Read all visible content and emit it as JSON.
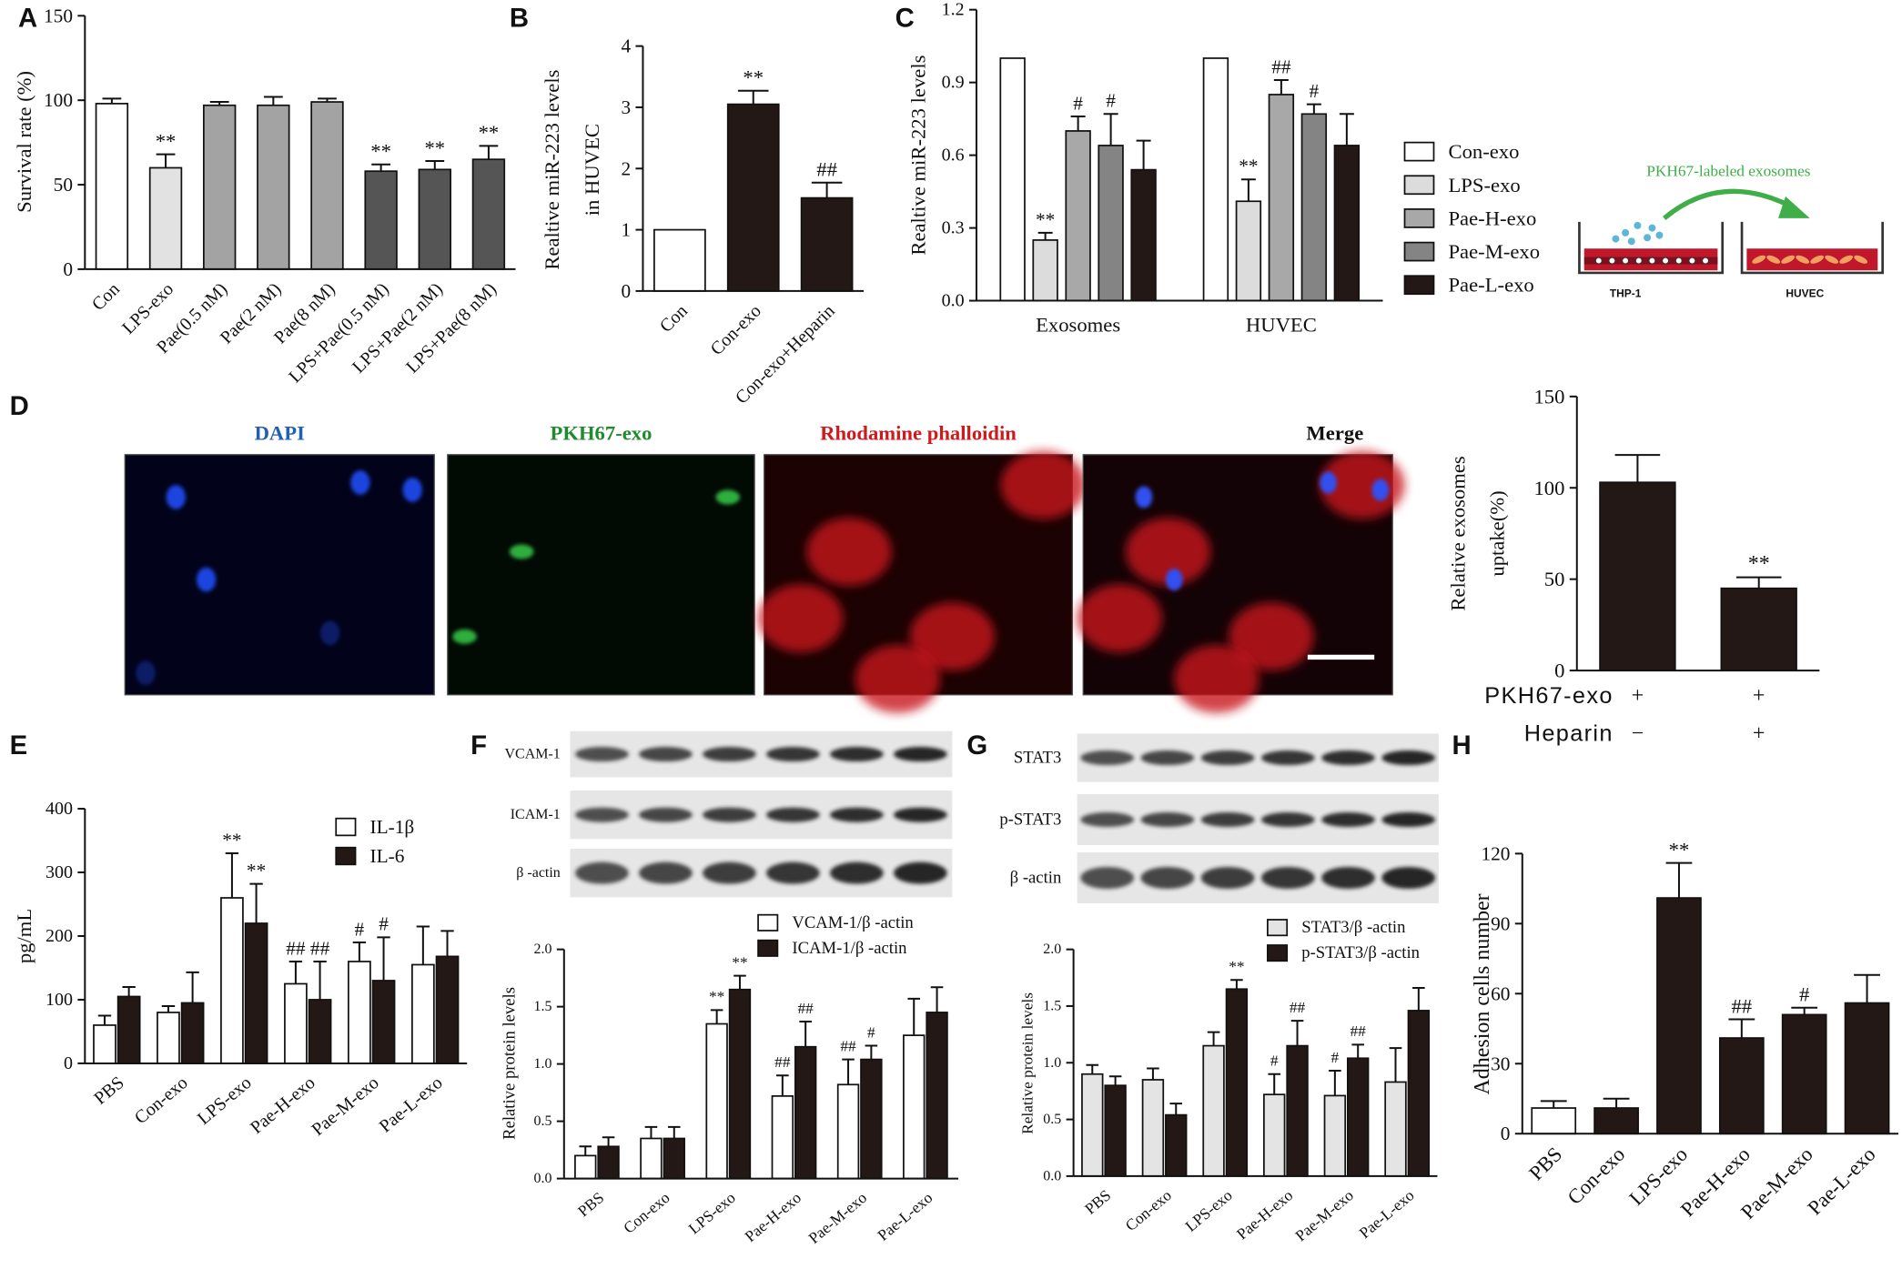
{
  "chart_data": [
    {
      "type": "bar",
      "panel": "A",
      "ylabel": "Survival rate (%)",
      "categories": [
        "Con",
        "LPS-exo",
        "Pae(0.5 nM)",
        "Pae(2 nM)",
        "Pae(8 nM)",
        "LPS+Pae(0.5 nM)",
        "LPS+Pae(2 nM)",
        "LPS+Pae(8 nM)"
      ],
      "series": [
        {
          "colors": [
            "#ffffff",
            "#e2e2e2",
            "#a3a3a3",
            "#a3a3a3",
            "#a3a3a3",
            "#555555",
            "#555555",
            "#555555"
          ],
          "values": [
            98,
            60,
            97,
            97,
            99,
            58,
            59,
            65
          ],
          "errors": [
            3,
            8,
            2,
            5,
            2,
            4,
            5,
            8
          ],
          "annotations": [
            null,
            "**",
            null,
            null,
            null,
            "**",
            "**",
            "**"
          ]
        }
      ],
      "ylim": [
        0,
        150
      ],
      "yticks": [
        0,
        50,
        100,
        150
      ]
    },
    {
      "type": "bar",
      "panel": "B",
      "ylabel": [
        "Realtive miR-223 levels",
        "in HUVEC"
      ],
      "categories": [
        "Con",
        "Con-exo",
        "Con-exo+Heparin"
      ],
      "series": [
        {
          "colors": [
            "#ffffff",
            "#231815",
            "#231815"
          ],
          "values": [
            1,
            3.05,
            1.52
          ],
          "errors": [
            null,
            0.22,
            0.25
          ],
          "annotations": [
            null,
            "**",
            "##"
          ]
        }
      ],
      "ylim": [
        0,
        4
      ],
      "yticks": [
        0,
        1,
        2,
        3,
        4
      ]
    },
    {
      "type": "bar",
      "panel": "C",
      "ylabel": "Realtive miR-223 levels",
      "categories": [
        "Exosomes",
        "HUVEC"
      ],
      "series": [
        {
          "name": "Con-exo",
          "color": "#ffffff",
          "values": [
            1,
            1
          ],
          "errors": [
            null,
            null
          ],
          "annotations": [
            null,
            null
          ]
        },
        {
          "name": "LPS-exo",
          "color": "#dcdcdc",
          "values": [
            0.25,
            0.41
          ],
          "errors": [
            0.03,
            0.09
          ],
          "annotations": [
            "**",
            "**"
          ]
        },
        {
          "name": "Pae-H-exo",
          "color": "#a8a8a8",
          "values": [
            0.7,
            0.85
          ],
          "errors": [
            0.06,
            0.06
          ],
          "annotations": [
            "#",
            "##"
          ]
        },
        {
          "name": "Pae-M-exo",
          "color": "#848484",
          "values": [
            0.64,
            0.77
          ],
          "errors": [
            0.13,
            0.04
          ],
          "annotations": [
            "#",
            "#"
          ]
        },
        {
          "name": "Pae-L-exo",
          "color": "#231815",
          "values": [
            0.54,
            0.64
          ],
          "errors": [
            0.12,
            0.13
          ],
          "annotations": [
            null,
            null
          ]
        }
      ],
      "ylim": [
        0,
        1.2
      ],
      "yticks": [
        {
          "value": 0,
          "label": "0.0"
        },
        0.3,
        0.6,
        0.9,
        1.2
      ]
    },
    {
      "type": "bar",
      "ylabel": [
        "Relative exosomes",
        "uptake(%)"
      ],
      "conditions": [
        {
          "name": "PKH67-exo",
          "values": [
            "+",
            "+"
          ]
        },
        {
          "name": "Heparin",
          "values": [
            "−",
            "+"
          ]
        }
      ],
      "series": [
        {
          "colors": [
            "#231815",
            "#231815"
          ],
          "values": [
            103,
            45
          ],
          "errors": [
            15,
            6
          ],
          "annotations": [
            null,
            "**"
          ]
        }
      ],
      "ylim": [
        0,
        150
      ],
      "yticks": [
        0,
        50,
        100,
        150
      ]
    },
    {
      "type": "bar",
      "panel": "E",
      "ylabel": "pg/mL",
      "categories": [
        "PBS",
        "Con-exo",
        "LPS-exo",
        "Pae-H-exo",
        "Pae-M-exo",
        "Pae-L-exo"
      ],
      "series": [
        {
          "name": "IL-1β",
          "color": "#ffffff",
          "values": [
            60,
            80,
            260,
            125,
            160,
            155
          ],
          "errors": [
            15,
            10,
            70,
            35,
            30,
            60
          ],
          "annotations": [
            null,
            null,
            "**",
            "##",
            "#",
            null
          ]
        },
        {
          "name": "IL-6",
          "color": "#231815",
          "values": [
            105,
            95,
            220,
            100,
            130,
            168
          ],
          "errors": [
            15,
            48,
            62,
            60,
            68,
            40
          ],
          "annotations": [
            null,
            null,
            "**",
            "##",
            "#",
            null
          ]
        }
      ],
      "ylim": [
        0,
        400
      ],
      "yticks": [
        0,
        100,
        200,
        300,
        400
      ]
    },
    {
      "type": "bar",
      "ylabel": "Relative protein levels",
      "categories": [
        "PBS",
        "Con-exo",
        "LPS-exo",
        "Pae-H-exo",
        "Pae-M-exo",
        "Pae-L-exo"
      ],
      "series": [
        {
          "name": "VCAM-1/β -actin",
          "color": "#ffffff",
          "values": [
            0.2,
            0.35,
            1.35,
            0.72,
            0.82,
            1.25
          ],
          "errors": [
            0.08,
            0.1,
            0.12,
            0.18,
            0.22,
            0.32
          ],
          "annotations": [
            null,
            null,
            "**",
            "##",
            "##",
            null
          ]
        },
        {
          "name": "ICAM-1/β -actin",
          "color": "#231815",
          "values": [
            0.28,
            0.35,
            1.65,
            1.15,
            1.04,
            1.45
          ],
          "errors": [
            0.08,
            0.1,
            0.12,
            0.22,
            0.12,
            0.22
          ],
          "annotations": [
            null,
            null,
            "**",
            "##",
            "#",
            null
          ]
        }
      ],
      "ylim": [
        0,
        2
      ],
      "yticks": [
        {
          "value": 0,
          "label": "0.0"
        },
        0.5,
        {
          "value": 1,
          "label": "1.0"
        },
        1.5,
        {
          "value": 2,
          "label": "2.0"
        }
      ]
    },
    {
      "type": "bar",
      "ylabel": "Relative protein levels",
      "categories": [
        "PBS",
        "Con-exo",
        "LPS-exo",
        "Pae-H-exo",
        "Pae-M-exo",
        "Pae-L-exo"
      ],
      "series": [
        {
          "name": "STAT3/β -actin",
          "color": "#e4e4e4",
          "values": [
            0.9,
            0.85,
            1.15,
            0.72,
            0.71,
            0.83
          ],
          "errors": [
            0.08,
            0.1,
            0.12,
            0.18,
            0.22,
            0.3
          ],
          "annotations": [
            null,
            null,
            null,
            "#",
            "#",
            null
          ]
        },
        {
          "name": "p-STAT3/β -actin",
          "color": "#231815",
          "values": [
            0.8,
            0.54,
            1.65,
            1.15,
            1.04,
            1.46
          ],
          "errors": [
            0.08,
            0.1,
            0.08,
            0.22,
            0.12,
            0.2
          ],
          "annotations": [
            null,
            null,
            "**",
            "##",
            "##",
            null
          ]
        }
      ],
      "ylim": [
        0,
        2
      ],
      "yticks": [
        {
          "value": 0,
          "label": "0.0"
        },
        0.5,
        {
          "value": 1,
          "label": "1.0"
        },
        1.5,
        {
          "value": 2,
          "label": "2.0"
        }
      ]
    },
    {
      "type": "bar",
      "panel": "H",
      "ylabel": "Adhesion cells number",
      "categories": [
        "PBS",
        "Con-exo",
        "LPS-exo",
        "Pae-H-exo",
        "Pae-M-exo",
        "Pae-L-exo"
      ],
      "series": [
        {
          "colors": [
            "#ffffff",
            "#231815",
            "#231815",
            "#231815",
            "#231815",
            "#231815"
          ],
          "values": [
            11,
            11,
            101,
            41,
            51,
            56
          ],
          "errors": [
            3,
            4,
            15,
            8,
            3,
            12
          ],
          "annotations": [
            null,
            null,
            "**",
            "##",
            "#",
            null
          ]
        }
      ],
      "ylim": [
        0,
        120
      ],
      "yticks": [
        0,
        30,
        60,
        90,
        120
      ]
    }
  ],
  "diagram": {
    "title": "PKH67-labeled exosomes",
    "labels": [
      "THP-1",
      "HUVEC"
    ]
  },
  "images": {
    "panel": "D",
    "labels": [
      "DAPI",
      "PKH67-exo",
      "Rhodamine phalloidin",
      "Merge"
    ],
    "label_colors": [
      "#1f5fb4",
      "#1f8a2e",
      "#d1191b",
      "#111111"
    ]
  },
  "blots": [
    {
      "panel": "F",
      "labels": [
        "VCAM-1",
        "ICAM-1",
        "β -actin"
      ]
    },
    {
      "panel": "G",
      "labels": [
        "STAT3",
        "p-STAT3",
        "β -actin"
      ]
    }
  ]
}
